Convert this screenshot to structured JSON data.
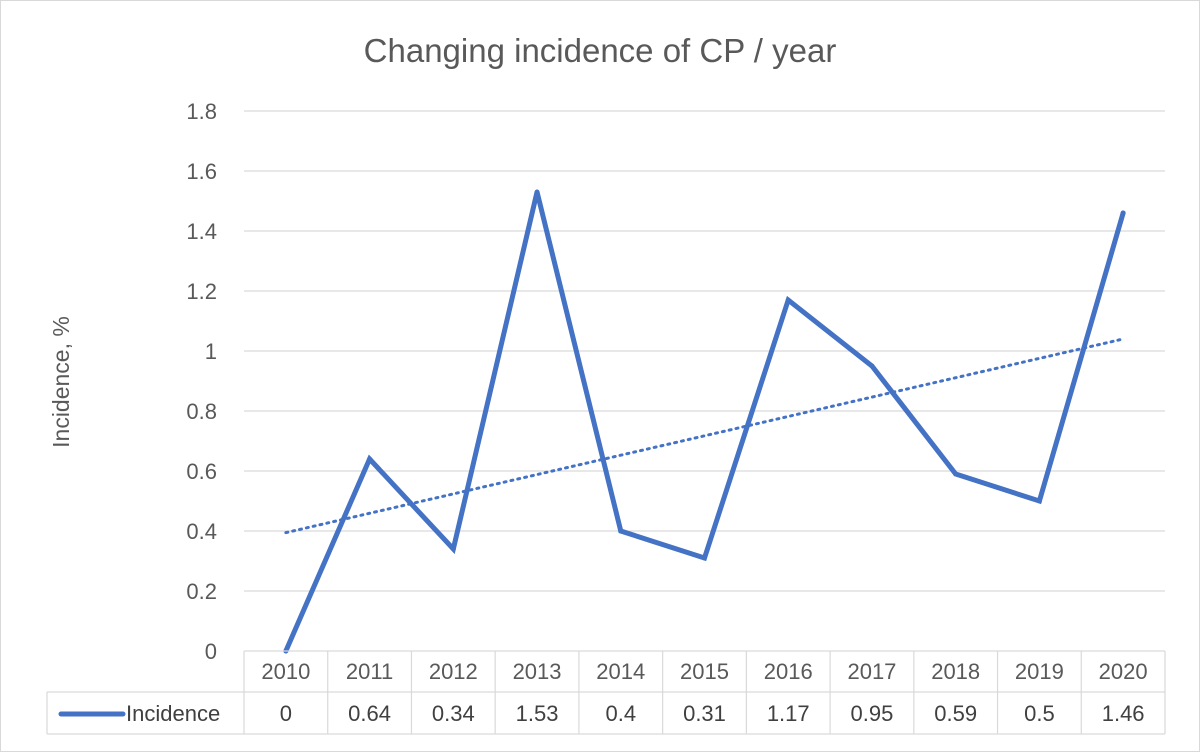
{
  "chart_data": {
    "type": "line",
    "title": "Changing incidence of CP / year",
    "xlabel": "",
    "ylabel": "Incidence, %",
    "categories": [
      "2010",
      "2011",
      "2012",
      "2013",
      "2014",
      "2015",
      "2016",
      "2017",
      "2018",
      "2019",
      "2020"
    ],
    "series": [
      {
        "name": "Incidence",
        "values": [
          0,
          0.64,
          0.34,
          1.53,
          0.4,
          0.31,
          1.17,
          0.95,
          0.59,
          0.5,
          1.46
        ],
        "color": "#4472C4"
      }
    ],
    "trendline": {
      "type": "linear",
      "style": "dotted",
      "color": "#4472C4"
    },
    "yticks": [
      "0",
      "0.2",
      "0.4",
      "0.6",
      "0.8",
      "1",
      "1.2",
      "1.4",
      "1.6",
      "1.8"
    ],
    "ylim": [
      0,
      1.8
    ],
    "grid": true,
    "data_table": true,
    "table_values": [
      "0",
      "0.64",
      "0.34",
      "1.53",
      "0.4",
      "0.31",
      "1.17",
      "0.95",
      "0.59",
      "0.5",
      "1.46"
    ]
  }
}
